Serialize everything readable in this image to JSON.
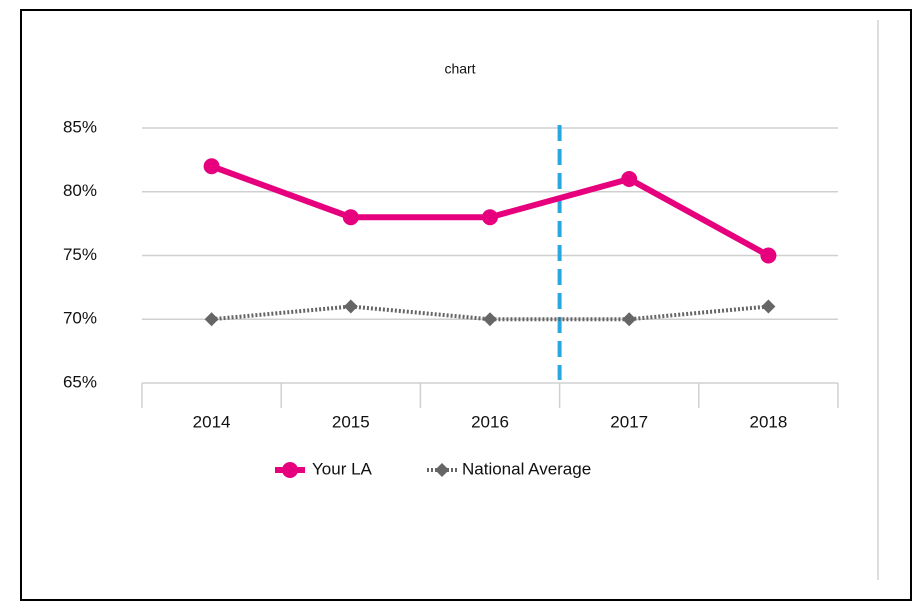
{
  "chart_data": {
    "type": "line",
    "title": "chart",
    "categories": [
      "2014",
      "2015",
      "2016",
      "2017",
      "2018"
    ],
    "series": [
      {
        "name": "Your LA",
        "color": "#e6007e",
        "values": [
          82,
          78,
          78,
          81,
          75
        ]
      },
      {
        "name": "National Average",
        "color": "#666666",
        "values": [
          70,
          71,
          70,
          70,
          71
        ]
      }
    ],
    "ylim": [
      65,
      85
    ],
    "yticks": [
      {
        "value": 65,
        "label": "65%"
      },
      {
        "value": 70,
        "label": "70%"
      },
      {
        "value": 75,
        "label": "75%"
      },
      {
        "value": 80,
        "label": "80%"
      },
      {
        "value": 85,
        "label": "85%"
      }
    ],
    "grid": true,
    "legend": "bottom"
  }
}
